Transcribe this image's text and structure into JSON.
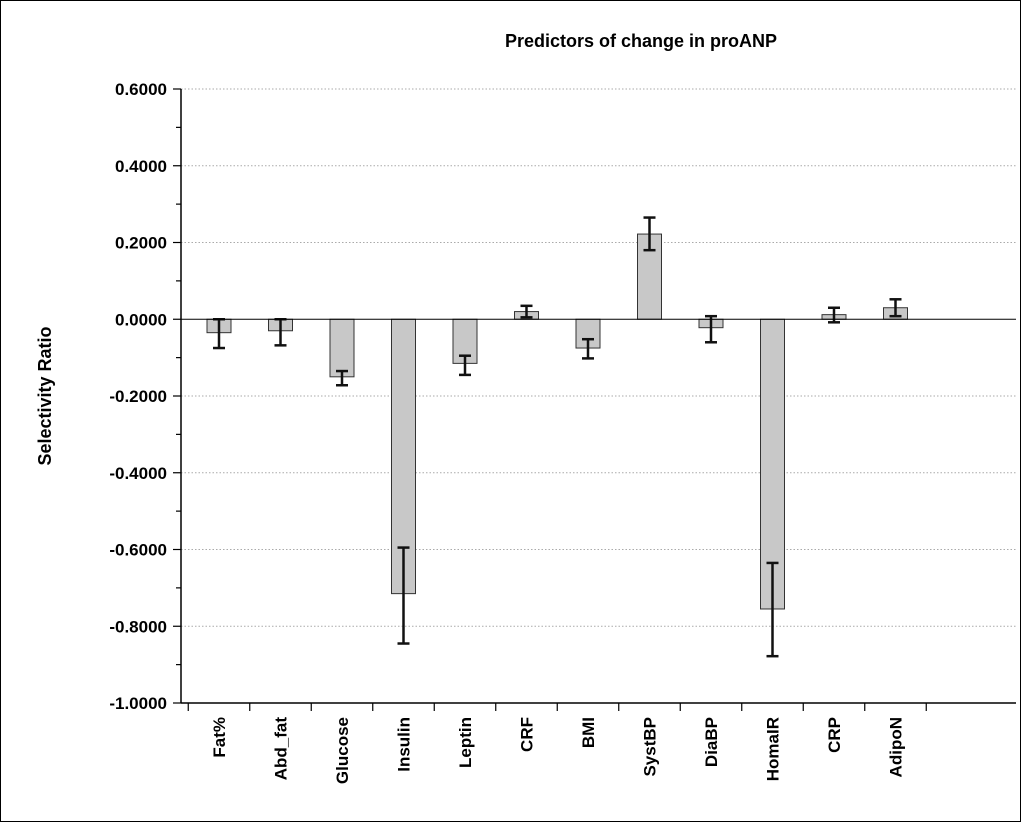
{
  "chart_data": {
    "type": "bar",
    "title": "Predictors of change in proANP",
    "xlabel": "",
    "ylabel": "Selectivity Ratio",
    "ylim": [
      -1.0,
      0.6
    ],
    "yticks": [
      "0.6000",
      "0.4000",
      "0.2000",
      "0.0000",
      "-0.2000",
      "-0.4000",
      "-0.6000",
      "-0.8000",
      "-1.0000"
    ],
    "ytick_values": [
      0.6,
      0.4,
      0.2,
      0.0,
      -0.2,
      -0.4,
      -0.6,
      -0.8,
      -1.0
    ],
    "grid": "horizontal dotted",
    "categories": [
      "Fat%",
      "Abd_fat",
      "Glucose",
      "Insulin",
      "Leptin",
      "CRF",
      "BMI",
      "SystBP",
      "DiaBP",
      "HomaIR",
      "CRP",
      "AdipoN"
    ],
    "values": [
      -0.035,
      -0.03,
      -0.15,
      -0.715,
      -0.115,
      0.02,
      -0.075,
      0.222,
      -0.022,
      -0.755,
      0.012,
      0.03
    ],
    "error_low": [
      -0.075,
      -0.068,
      -0.172,
      -0.845,
      -0.145,
      0.005,
      -0.102,
      0.18,
      -0.06,
      -0.878,
      -0.008,
      0.008
    ],
    "error_high": [
      0.0,
      0.0,
      -0.135,
      -0.595,
      -0.095,
      0.035,
      -0.052,
      0.265,
      0.008,
      -0.635,
      0.03,
      0.052
    ],
    "colors": {
      "bar": "#c8c8c8",
      "bar_edge": "#333333",
      "error": "#111111",
      "grid": "#aaaaaa"
    }
  }
}
